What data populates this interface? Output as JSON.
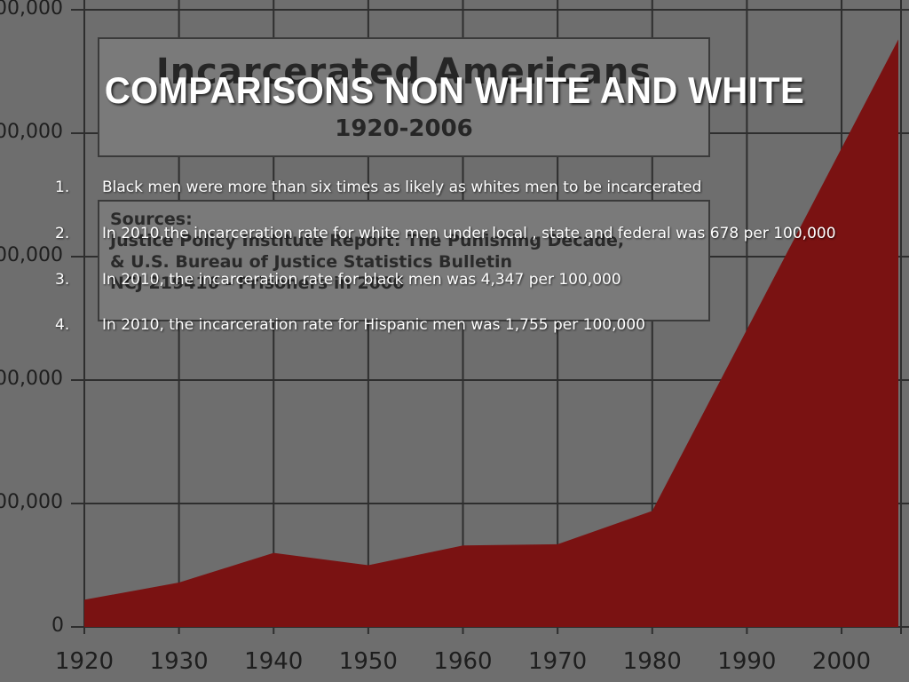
{
  "slide": {
    "title": "COMPARISONS NON WHITE AND WHITE",
    "bullets": [
      {
        "num": "1.",
        "text": "Black men were more than six times as likely as whites men to be incarcerated"
      },
      {
        "num": "2.",
        "text": "In 2010,the incarceration rate for white men under local , state and federal was 678 per 100,000"
      },
      {
        "num": "3.",
        "text": "In 2010, the incarceration rate for black men was 4,347 per 100,000"
      },
      {
        "num": "4.",
        "text": "In 2010, the incarceration rate for Hispanic men was 1,755 per 100,000"
      }
    ]
  },
  "background_chart": {
    "title_box": {
      "title": "Incarcerated Americans",
      "years": "1920-2006"
    },
    "sources": [
      "Sources:",
      "Justice Policy Institute Report: The Punishing Decade,",
      "& U.S. Bureau of Justice Statistics Bulletin",
      "NCJ 219416 - Prisoners in 2006"
    ],
    "colors": {
      "area": "#7a1212",
      "grid": "#2e2e2e",
      "background": "#6e6e6e"
    }
  },
  "chart_data": {
    "type": "area",
    "x": [
      1920,
      1930,
      1940,
      1950,
      1960,
      1970,
      1980,
      2006
    ],
    "values": [
      110000,
      180000,
      300000,
      250000,
      330000,
      335000,
      470000,
      2380000
    ],
    "y_tick_labels": [
      "0",
      "00,000",
      "00,000",
      "00,000",
      "00,000",
      "00,000"
    ],
    "y_tick_values": [
      0,
      500000,
      1000000,
      1500000,
      2000000,
      2500000
    ],
    "x_tick_labels": [
      "1920",
      "1930",
      "1940",
      "1950",
      "1960",
      "1970",
      "1980",
      "1990",
      "2000"
    ],
    "x_tick_values": [
      1920,
      1930,
      1940,
      1950,
      1960,
      1970,
      1980,
      1990,
      2000
    ],
    "xlim": [
      1920,
      2006
    ],
    "ylim": [
      0,
      2500000
    ],
    "grid": true
  }
}
